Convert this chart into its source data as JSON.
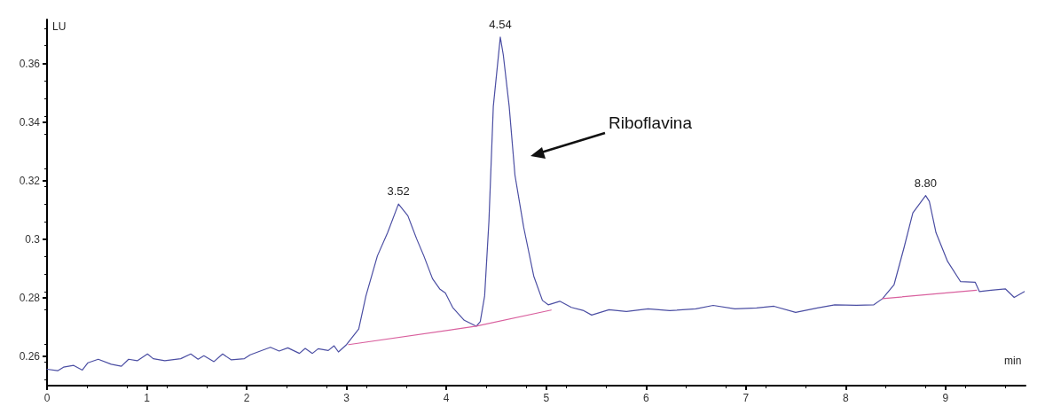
{
  "chart_data": {
    "type": "line",
    "xlabel": "min",
    "ylabel": "LU",
    "xlim": [
      0,
      9.8
    ],
    "xticks": [
      0,
      1,
      2,
      3,
      4,
      5,
      6,
      7,
      8,
      9
    ],
    "ylim": [
      0.25,
      0.375
    ],
    "yticks": [
      0.26,
      0.28,
      0.3,
      0.32,
      0.34,
      0.36
    ],
    "grid": false,
    "marker": "none",
    "line_style": "solid",
    "series": [
      {
        "color": "#4b4ea3",
        "x": [
          0,
          0.107,
          0.165,
          0.267,
          0.354,
          0.41,
          0.513,
          0.643,
          0.745,
          0.817,
          0.904,
          1.006,
          1.064,
          1.18,
          1.339,
          1.44,
          1.513,
          1.571,
          1.672,
          1.759,
          1.846,
          1.977,
          2.035,
          2.136,
          2.238,
          2.325,
          2.412,
          2.528,
          2.586,
          2.658,
          2.716,
          2.817,
          2.875,
          2.919,
          3.0,
          3.122,
          3.194,
          3.309,
          3.411,
          3.52,
          3.614,
          3.701,
          3.774,
          3.861,
          3.933,
          3.99,
          4.063,
          4.179,
          4.3,
          4.339,
          4.383,
          4.426,
          4.47,
          4.54,
          4.57,
          4.629,
          4.687,
          4.774,
          4.875,
          4.962,
          5.02,
          5.136,
          5.252,
          5.368,
          5.455,
          5.629,
          5.803,
          6.02,
          6.237,
          6.498,
          6.672,
          6.89,
          7.107,
          7.281,
          7.498,
          7.716,
          7.89,
          8.107,
          8.281,
          8.368,
          8.484,
          8.585,
          8.672,
          8.8,
          8.837,
          8.904,
          9.02,
          9.15,
          9.296,
          9.339,
          9.455,
          9.6,
          9.687,
          9.788
        ],
        "values": [
          0.2556,
          0.2551,
          0.2563,
          0.2569,
          0.2553,
          0.2578,
          0.259,
          0.2573,
          0.2566,
          0.259,
          0.2585,
          0.2608,
          0.2592,
          0.2585,
          0.2592,
          0.2608,
          0.259,
          0.2602,
          0.2582,
          0.2608,
          0.2588,
          0.2592,
          0.2605,
          0.2618,
          0.2631,
          0.2618,
          0.2629,
          0.261,
          0.2627,
          0.261,
          0.2626,
          0.262,
          0.2636,
          0.2615,
          0.264,
          0.2693,
          0.2806,
          0.2943,
          0.3022,
          0.312,
          0.308,
          0.3002,
          0.2943,
          0.2865,
          0.283,
          0.2816,
          0.2767,
          0.2723,
          0.2703,
          0.2718,
          0.2806,
          0.3061,
          0.3453,
          0.369,
          0.3629,
          0.3453,
          0.3218,
          0.3041,
          0.2874,
          0.2791,
          0.2776,
          0.2788,
          0.2767,
          0.2757,
          0.2741,
          0.2759,
          0.2753,
          0.2762,
          0.2756,
          0.2762,
          0.2774,
          0.2762,
          0.2765,
          0.2771,
          0.275,
          0.2765,
          0.2776,
          0.2774,
          0.2776,
          0.2797,
          0.2845,
          0.2973,
          0.309,
          0.3149,
          0.3129,
          0.3022,
          0.2924,
          0.2855,
          0.2853,
          0.2821,
          0.2826,
          0.283,
          0.2801,
          0.2821
        ]
      },
      {
        "color": "#d9609e",
        "x": [
          3.02,
          4.3,
          5.05
        ],
        "values": [
          0.264,
          0.2703,
          0.2758
        ]
      },
      {
        "color": "#d9609e",
        "x": [
          8.368,
          9.31
        ],
        "values": [
          0.2797,
          0.2826
        ]
      }
    ],
    "annotations": [
      {
        "text": "3.52",
        "x": 3.52,
        "y": 0.312
      },
      {
        "text": "4.54",
        "x": 4.54,
        "y": 0.369
      },
      {
        "text": "8.80",
        "x": 8.8,
        "y": 0.3149
      },
      "Riboflavina"
    ]
  }
}
